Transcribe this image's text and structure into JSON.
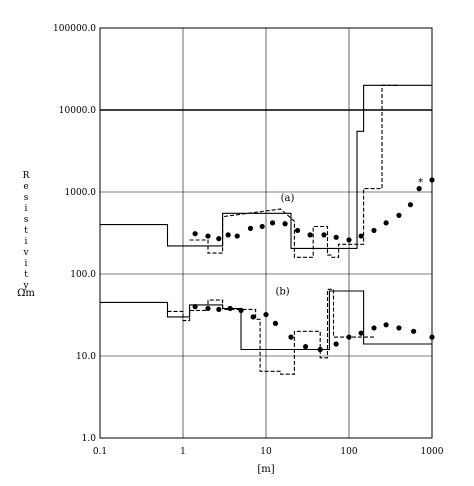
{
  "chart_data": {
    "type": "line",
    "title": "",
    "xlabel": "[m]",
    "ylabel": "Resistivity",
    "yunit": "Ωm",
    "xscale": "log",
    "yscale": "log",
    "xlim": [
      0.1,
      1000
    ],
    "ylim": [
      1,
      100000
    ],
    "grid": true,
    "x_ticks": [
      "0.1",
      "1",
      "10",
      "100",
      "1000"
    ],
    "y_ticks": [
      "1.0",
      "10.0",
      "100.0",
      "1000.0",
      "10000.0",
      "100000.0"
    ],
    "annotations": [
      {
        "text": "(a)",
        "x": 15,
        "y": 780
      },
      {
        "text": "(b)",
        "x": 13,
        "y": 56
      },
      {
        "text": "*",
        "x": 680,
        "y": 1200
      }
    ],
    "series": [
      {
        "style": "solid-step",
        "x": [
          0.1,
          0.65,
          0.65,
          3.0,
          3.0,
          20,
          20,
          125,
          125,
          150,
          150,
          1000
        ],
        "y": [
          400,
          400,
          220,
          220,
          550,
          550,
          205,
          205,
          5500,
          5500,
          20000,
          20000
        ]
      },
      {
        "style": "dashed-step",
        "x": [
          1.2,
          1.2,
          2.0,
          2.0,
          3.0,
          3.0,
          15,
          15,
          22,
          22,
          37,
          37,
          55,
          55,
          62,
          62,
          75,
          75,
          150,
          150,
          250,
          250,
          400
        ],
        "y": [
          260,
          260,
          260,
          180,
          180,
          500,
          620,
          620,
          440,
          160,
          160,
          380,
          380,
          170,
          170,
          160,
          160,
          230,
          230,
          1100,
          1100,
          20000,
          20000
        ]
      },
      {
        "style": "dots",
        "x": [
          1.4,
          2.0,
          2.7,
          3.5,
          4.5,
          6.5,
          9,
          12,
          17,
          24,
          34,
          50,
          70,
          100,
          140,
          200,
          280,
          400,
          550,
          700,
          1000
        ],
        "y": [
          310,
          290,
          270,
          300,
          290,
          360,
          380,
          420,
          410,
          340,
          300,
          300,
          280,
          260,
          290,
          340,
          420,
          520,
          700,
          1100,
          1400
        ]
      },
      {
        "style": "solid-step",
        "x": [
          0.1,
          0.65,
          0.65,
          1.2,
          1.2,
          3.0,
          3.0,
          5.0,
          5.0,
          20,
          20,
          58,
          58,
          150,
          150,
          1000
        ],
        "y": [
          45,
          45,
          30,
          30,
          42,
          42,
          38,
          38,
          12,
          12,
          12,
          12,
          62,
          62,
          14,
          14
        ]
      },
      {
        "style": "dashed-step",
        "x": [
          0.65,
          1.0,
          1.0,
          1.2,
          1.2,
          2.0,
          2.0,
          3.0,
          3.0,
          7.5,
          7.5,
          8.5,
          8.5,
          15,
          15,
          22,
          22,
          45,
          45,
          55,
          55,
          65,
          65,
          160,
          160,
          200
        ],
        "y": [
          35,
          35,
          27,
          27,
          36,
          36,
          48,
          48,
          37,
          37,
          28,
          28,
          6.5,
          6.5,
          6.0,
          6.0,
          20,
          20,
          9.5,
          9.5,
          65,
          65,
          17,
          17,
          17,
          17
        ]
      },
      {
        "style": "dots",
        "x": [
          1.4,
          2.0,
          2.7,
          3.7,
          5.0,
          7.0,
          10,
          13,
          20,
          30,
          45,
          70,
          100,
          140,
          200,
          280,
          400,
          600,
          1000
        ],
        "y": [
          40,
          38,
          37,
          38,
          36,
          30,
          32,
          25,
          17,
          13,
          12,
          14,
          17,
          19,
          22,
          24,
          22,
          20,
          17
        ]
      }
    ]
  }
}
